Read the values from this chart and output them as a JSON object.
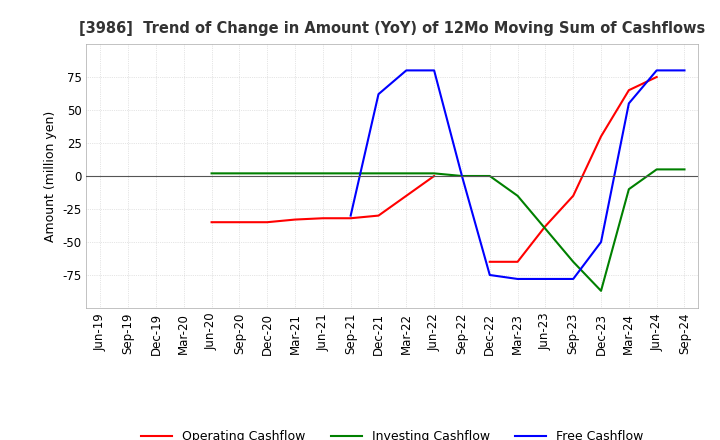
{
  "title": "[3986]  Trend of Change in Amount (YoY) of 12Mo Moving Sum of Cashflows",
  "ylabel": "Amount (million yen)",
  "background_color": "#ffffff",
  "grid_color": "#cccccc",
  "x_labels": [
    "Jun-19",
    "Sep-19",
    "Dec-19",
    "Mar-20",
    "Jun-20",
    "Sep-20",
    "Dec-20",
    "Mar-21",
    "Jun-21",
    "Sep-21",
    "Dec-21",
    "Mar-22",
    "Jun-22",
    "Sep-22",
    "Dec-22",
    "Mar-23",
    "Jun-23",
    "Sep-23",
    "Dec-23",
    "Mar-24",
    "Jun-24",
    "Sep-24"
  ],
  "operating_cashflow": [
    null,
    null,
    null,
    null,
    -35,
    -35,
    -35,
    -33,
    -32,
    -32,
    -30,
    -15,
    0,
    null,
    -65,
    -65,
    -38,
    -15,
    30,
    65,
    75,
    null
  ],
  "investing_cashflow": [
    null,
    null,
    null,
    null,
    2,
    2,
    2,
    2,
    2,
    2,
    2,
    2,
    2,
    0,
    0,
    -15,
    -40,
    -65,
    -87,
    -10,
    5,
    5
  ],
  "free_cashflow": [
    null,
    null,
    null,
    null,
    null,
    null,
    null,
    null,
    null,
    -30,
    62,
    80,
    80,
    0,
    -75,
    -78,
    -78,
    -78,
    -50,
    55,
    80,
    80
  ],
  "operating_color": "#ff0000",
  "investing_color": "#008000",
  "free_color": "#0000ff",
  "ylim": [
    -100,
    100
  ],
  "yticks": [
    -75,
    -50,
    -25,
    0,
    25,
    50,
    75
  ]
}
